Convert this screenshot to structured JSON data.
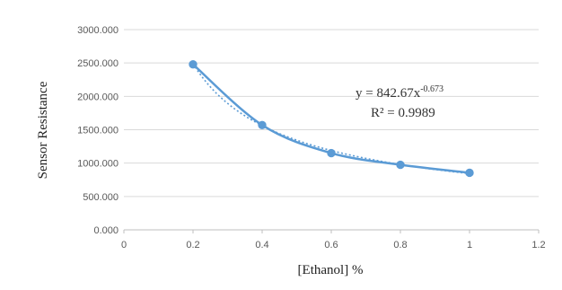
{
  "chart_data": {
    "type": "scatter",
    "title": "",
    "xlabel": "[Ethanol] %",
    "ylabel": "Sensor Resistance",
    "xlim": [
      0,
      1.2
    ],
    "ylim": [
      0,
      3000
    ],
    "x_ticks": [
      "0",
      "0.2",
      "0.4",
      "0.6",
      "0.8",
      "1",
      "1.2"
    ],
    "y_ticks": [
      "0.000",
      "500.000",
      "1000.000",
      "1500.000",
      "2000.000",
      "2500.000",
      "3000.000"
    ],
    "grid": "horizontal",
    "series": [
      {
        "x": [
          0.2,
          0.4,
          0.6,
          0.8,
          1.0
        ],
        "y": [
          2480,
          1570,
          1150,
          975,
          855
        ],
        "line": "smooth",
        "color": "#5b9bd5"
      }
    ],
    "trendline": {
      "kind": "power",
      "coefficient": 842.67,
      "exponent": -0.673,
      "style": "dotted",
      "color": "#5b9bd5"
    },
    "annotation": {
      "equation_prefix": "y = 842.67x",
      "equation_exponent": "-0.673",
      "r_squared": "R² = 0.9989"
    }
  }
}
